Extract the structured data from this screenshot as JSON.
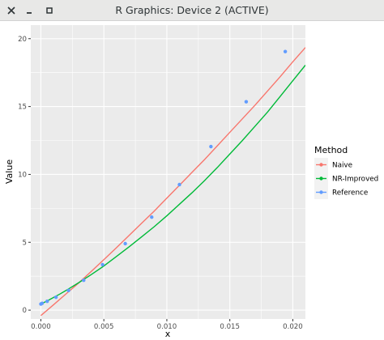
{
  "window": {
    "title": "R Graphics: Device 2 (ACTIVE)",
    "buttons": [
      {
        "name": "close",
        "icon": "close-icon"
      },
      {
        "name": "minimize",
        "icon": "minimize-icon"
      },
      {
        "name": "maximize",
        "icon": "maximize-icon"
      }
    ]
  },
  "chart_data": {
    "type": "line",
    "xlabel": "x",
    "ylabel": "Value",
    "xlim": [
      -0.0008,
      0.021
    ],
    "ylim": [
      -0.65,
      21.0
    ],
    "x_ticks": [
      0.0,
      0.005,
      0.01,
      0.015,
      0.02
    ],
    "x_tick_labels": [
      "0.000",
      "0.005",
      "0.010",
      "0.015",
      "0.020"
    ],
    "y_ticks": [
      0,
      5,
      10,
      15,
      20
    ],
    "y_tick_labels": [
      "0",
      "5",
      "10",
      "15",
      "20"
    ],
    "grid": true,
    "legend": {
      "title": "Method",
      "placement": "right",
      "entries": [
        {
          "label": "Naive",
          "color": "#F8766D"
        },
        {
          "label": "NR-Improved",
          "color": "#00BA38"
        },
        {
          "label": "Reference",
          "color": "#619CFF"
        }
      ]
    },
    "series": [
      {
        "name": "Naive",
        "kind": "line",
        "color": "#F8766D",
        "x": [
          0.0,
          0.001,
          0.002,
          0.003,
          0.004,
          0.005,
          0.006,
          0.007,
          0.008,
          0.009,
          0.01,
          0.011,
          0.012,
          0.013,
          0.014,
          0.015,
          0.016,
          0.017,
          0.018,
          0.019,
          0.02,
          0.021
        ],
        "y": [
          -0.4,
          0.39,
          1.2,
          2.0,
          2.85,
          3.72,
          4.6,
          5.5,
          6.4,
          7.3,
          8.25,
          9.2,
          10.15,
          11.1,
          12.1,
          13.1,
          14.1,
          15.1,
          16.15,
          17.2,
          18.3,
          19.35
        ]
      },
      {
        "name": "NR-Improved",
        "kind": "line",
        "color": "#00BA38",
        "x": [
          0.0,
          0.0005,
          0.001,
          0.0015,
          0.002,
          0.003,
          0.004,
          0.005,
          0.006,
          0.007,
          0.008,
          0.009,
          0.01,
          0.011,
          0.012,
          0.013,
          0.014,
          0.015,
          0.016,
          0.017,
          0.018,
          0.019,
          0.02,
          0.021
        ],
        "y": [
          0.45,
          0.68,
          0.93,
          1.18,
          1.45,
          2.02,
          2.62,
          3.25,
          3.95,
          4.66,
          5.4,
          6.15,
          6.95,
          7.8,
          8.65,
          9.55,
          10.5,
          11.5,
          12.5,
          13.55,
          14.6,
          15.75,
          16.9,
          18.05
        ]
      },
      {
        "name": "Reference",
        "kind": "scatter",
        "color": "#619CFF",
        "x": [
          0.0,
          0.0001,
          0.0005,
          0.0012,
          0.0022,
          0.0034,
          0.0049,
          0.0067,
          0.0088,
          0.011,
          0.0135,
          0.0163,
          0.0194
        ],
        "y": [
          0.45,
          0.5,
          0.65,
          0.95,
          1.45,
          2.2,
          3.35,
          4.9,
          6.85,
          9.25,
          12.05,
          15.35,
          19.05
        ]
      }
    ]
  }
}
